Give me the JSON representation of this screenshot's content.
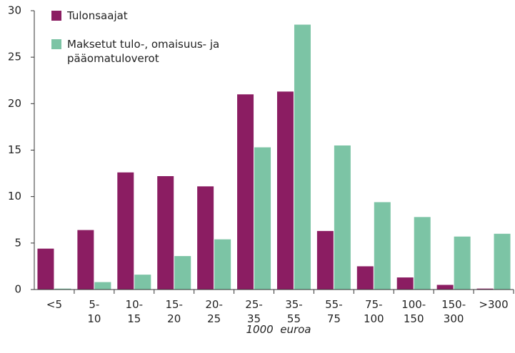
{
  "chart_data": {
    "type": "bar",
    "x_label": "1000  euroa",
    "categories": [
      "<5",
      "5-\n10",
      "10-\n15",
      "15-\n20",
      "20-\n25",
      "25-\n35",
      "35-\n55",
      "55-\n75",
      "75-\n100",
      "100-\n150",
      "150-\n300",
      ">300"
    ],
    "series": [
      {
        "name": "Tulonsaajat",
        "color": "#8b1d62",
        "values": [
          4.4,
          6.4,
          12.6,
          12.2,
          11.1,
          21.0,
          21.3,
          6.3,
          2.5,
          1.3,
          0.5,
          0.1
        ]
      },
      {
        "name": "Maksetut tulo-, omaisuus- ja pääomatuloverot",
        "color": "#7cc4a5",
        "values": [
          0.1,
          0.8,
          1.6,
          3.6,
          5.4,
          15.3,
          28.5,
          15.5,
          9.4,
          7.8,
          5.7,
          6.0
        ]
      }
    ],
    "ylim": [
      0,
      30
    ],
    "yticks": [
      0,
      5,
      10,
      15,
      20,
      25,
      30
    ],
    "legend": "upper left"
  }
}
